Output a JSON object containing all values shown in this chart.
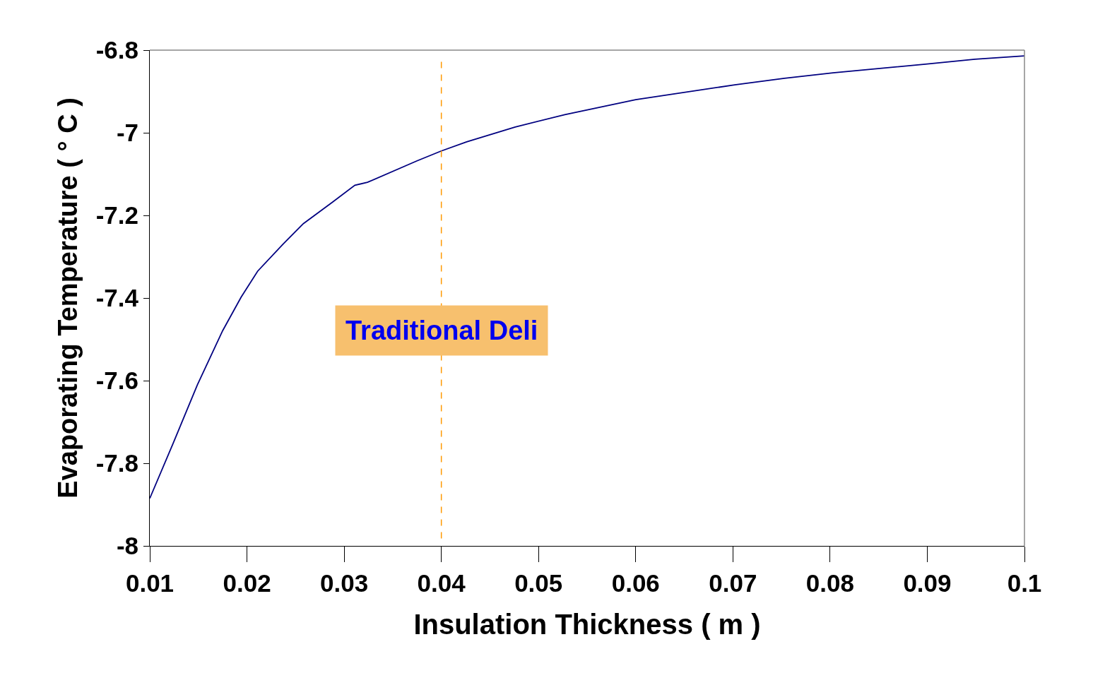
{
  "chart_data": {
    "type": "line",
    "xlabel": "Insulation Thickness ( m )",
    "ylabel": "Evaporating Temperature ( ° C )",
    "series": [
      {
        "color": "#000080",
        "x": [
          0.01,
          0.0124,
          0.0149,
          0.0175,
          0.0194,
          0.0211,
          0.0237,
          0.0258,
          0.0288,
          0.0311,
          0.0324,
          0.0375,
          0.04,
          0.0426,
          0.0476,
          0.0527,
          0.06,
          0.0702,
          0.0753,
          0.0803,
          0.0898,
          0.0949,
          0.1
        ],
        "values": [
          -7.885,
          -7.752,
          -7.61,
          -7.479,
          -7.398,
          -7.335,
          -7.27,
          -7.22,
          -7.168,
          -7.127,
          -7.12,
          -7.068,
          -7.044,
          -7.022,
          -6.986,
          -6.956,
          -6.92,
          -6.884,
          -6.868,
          -6.855,
          -6.834,
          -6.822,
          -6.814
        ]
      }
    ],
    "xlim": [
      0.01,
      0.1
    ],
    "xticks": [
      0.01,
      0.02,
      0.03,
      0.04,
      0.05,
      0.06,
      0.07,
      0.08,
      0.09,
      0.1
    ],
    "ylim": [
      -8,
      -6.8
    ],
    "yticks": [
      -8,
      -7.8,
      -7.6,
      -7.4,
      -7.2,
      -7,
      -6.8
    ],
    "ref_lines": [
      {
        "axis": "x",
        "value": 0.04,
        "label": "Traditional Deli",
        "color": "#ff9900",
        "line_style": "dashed"
      }
    ],
    "grid": false,
    "marker": "none",
    "line_style": "solid"
  }
}
